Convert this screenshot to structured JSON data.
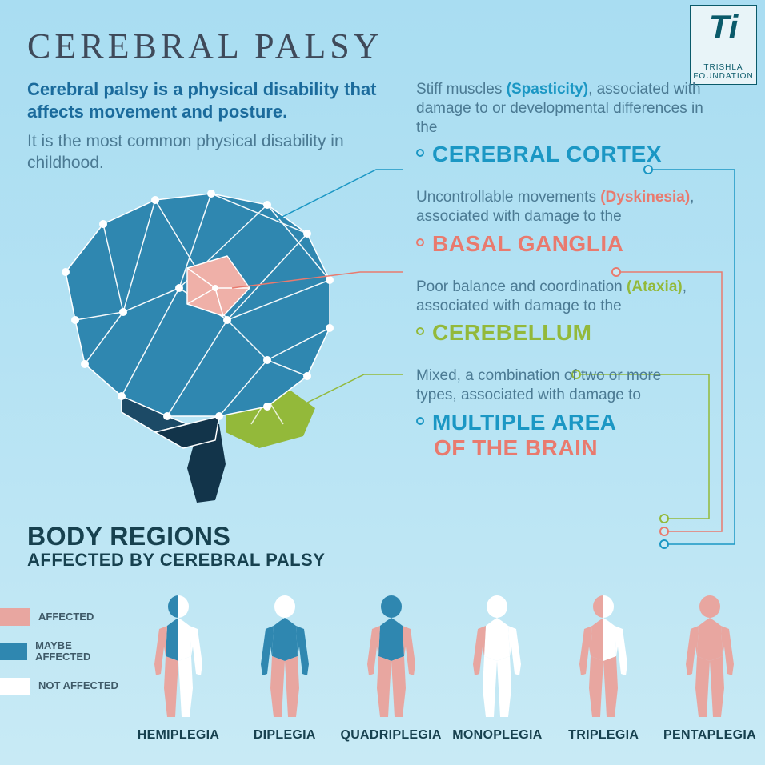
{
  "page_title": "CEREBRAL PALSY",
  "intro_bold": "Cerebral palsy is a physical disability that affects movement and posture.",
  "intro_sub": "It is the most common physical disability in childhood.",
  "logo": {
    "brand": "TRISHLA",
    "sub": "FOUNDATION"
  },
  "colors": {
    "bg_top": "#a9ddf2",
    "bg_bottom": "#c8eaf5",
    "title_text": "#3f4a5a",
    "intro_bold": "#1b6b9c",
    "intro_sub": "#4b7a93",
    "cortex": "#1b97c4",
    "basal": "#e97a6e",
    "cerebellum": "#93b93a",
    "section_title": "#17414f",
    "affected": "#e8a6a0",
    "maybe": "#2f87b0",
    "not_affected": "#ffffff",
    "brain_main": "#2f87b0",
    "brain_dark": "#1c4a66",
    "brain_darkest": "#12344a"
  },
  "callouts": [
    {
      "pre": "Stiff muscles ",
      "keyword": "(Spasticity)",
      "post": ", associated with damage to or developmental differences in the",
      "label": "CEREBRAL CORTEX",
      "color": "#1b97c4"
    },
    {
      "pre": "Uncontrollable movements ",
      "keyword": "(Dyskinesia)",
      "post": ", associated with damage to the",
      "label": "BASAL GANGLIA",
      "color": "#e97a6e"
    },
    {
      "pre": "Poor balance and coordination ",
      "keyword": "(Ataxia)",
      "post": ", associated with damage to the",
      "label": "CEREBELLUM",
      "color": "#93b93a"
    },
    {
      "pre": "Mixed, a combination of two or more types, associated with damage to",
      "keyword": "",
      "post": "",
      "label_line1": "MULTIPLE AREA",
      "label_line2": "OF THE BRAIN",
      "color": "#1b97c4"
    }
  ],
  "section_title_l1": "BODY REGIONS",
  "section_title_l2": "AFFECTED BY CEREBRAL PALSY",
  "legend": [
    {
      "label": "AFFECTED",
      "color": "#e8a6a0"
    },
    {
      "label": "MAYBE AFFECTED",
      "color": "#2f87b0"
    },
    {
      "label": "NOT AFFECTED",
      "color": "#ffffff"
    }
  ],
  "figures": [
    {
      "label": "HEMIPLEGIA",
      "regions": {
        "head_l": "#2f87b0",
        "head_r": "#ffffff",
        "torso_l": "#2f87b0",
        "torso_r": "#ffffff",
        "arm_l": "#e8a6a0",
        "arm_r": "#ffffff",
        "leg_l": "#e8a6a0",
        "leg_r": "#ffffff"
      }
    },
    {
      "label": "DIPLEGIA",
      "regions": {
        "head_l": "#ffffff",
        "head_r": "#ffffff",
        "torso_l": "#2f87b0",
        "torso_r": "#2f87b0",
        "arm_l": "#2f87b0",
        "arm_r": "#2f87b0",
        "leg_l": "#e8a6a0",
        "leg_r": "#e8a6a0"
      }
    },
    {
      "label": "QUADRIPLEGIA",
      "regions": {
        "head_l": "#2f87b0",
        "head_r": "#2f87b0",
        "torso_l": "#2f87b0",
        "torso_r": "#2f87b0",
        "arm_l": "#e8a6a0",
        "arm_r": "#e8a6a0",
        "leg_l": "#e8a6a0",
        "leg_r": "#e8a6a0"
      }
    },
    {
      "label": "MONOPLEGIA",
      "regions": {
        "head_l": "#ffffff",
        "head_r": "#ffffff",
        "torso_l": "#ffffff",
        "torso_r": "#ffffff",
        "arm_l": "#e8a6a0",
        "arm_r": "#ffffff",
        "leg_l": "#ffffff",
        "leg_r": "#ffffff"
      }
    },
    {
      "label": "TRIPLEGIA",
      "regions": {
        "head_l": "#e8a6a0",
        "head_r": "#ffffff",
        "torso_l": "#e8a6a0",
        "torso_r": "#ffffff",
        "arm_l": "#e8a6a0",
        "arm_r": "#ffffff",
        "leg_l": "#e8a6a0",
        "leg_r": "#e8a6a0"
      }
    },
    {
      "label": "PENTAPLEGIA",
      "regions": {
        "head_l": "#e8a6a0",
        "head_r": "#e8a6a0",
        "torso_l": "#e8a6a0",
        "torso_r": "#e8a6a0",
        "arm_l": "#e8a6a0",
        "arm_r": "#e8a6a0",
        "leg_l": "#e8a6a0",
        "leg_r": "#e8a6a0"
      }
    }
  ]
}
